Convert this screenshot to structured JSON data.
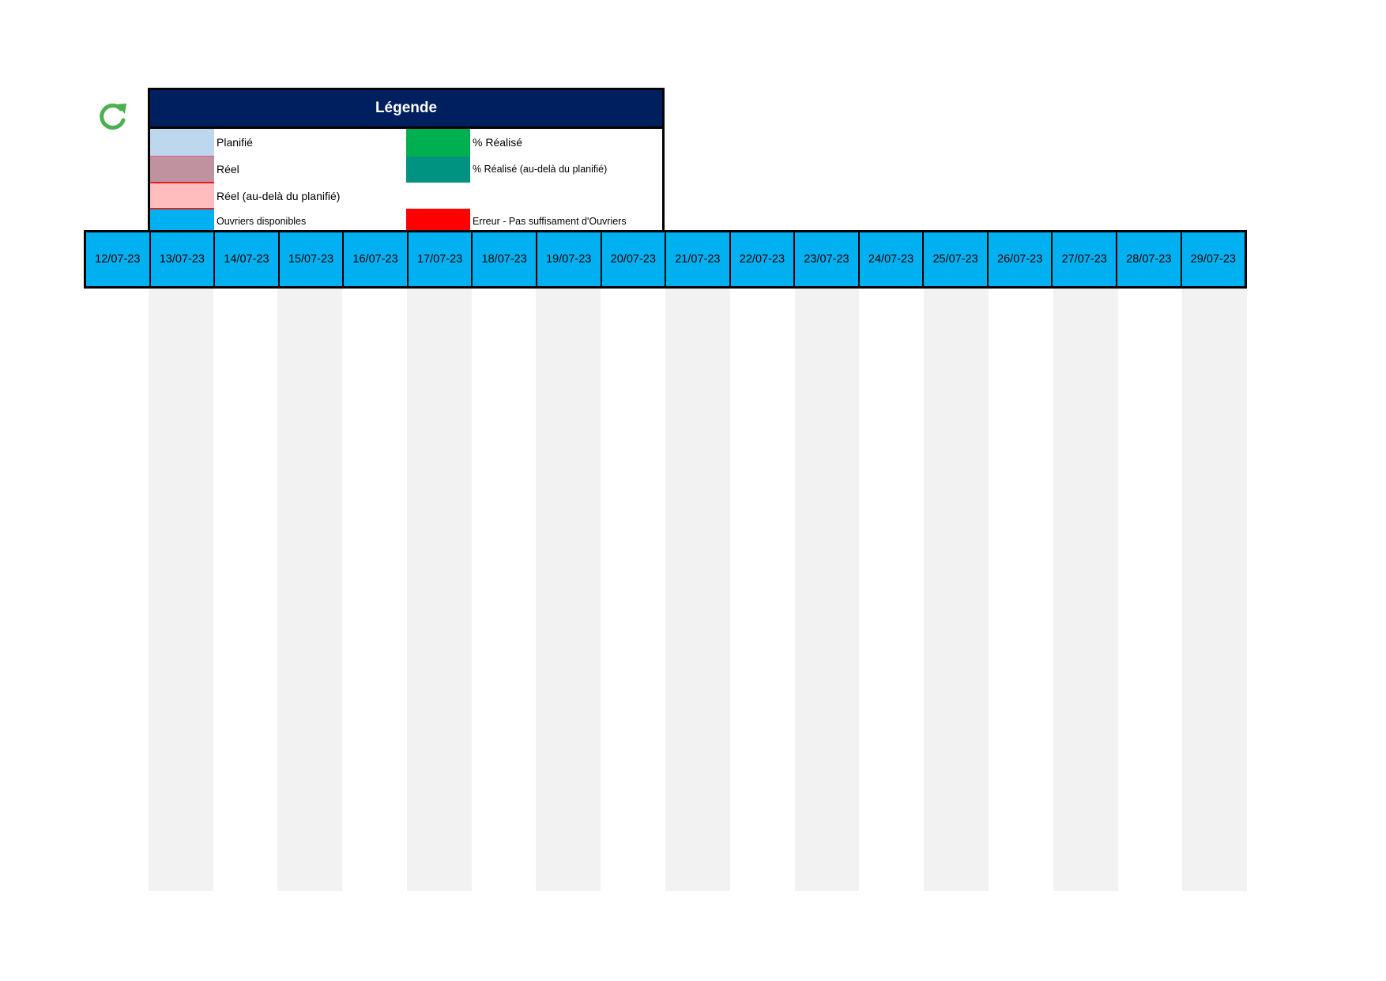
{
  "refresh_icon": "refresh-icon",
  "legend": {
    "title": "Légende",
    "items": [
      {
        "label": "Planifié",
        "color": "#bdd7ee"
      },
      {
        "label": "Réel",
        "color": "#c0929f"
      },
      {
        "label": "Réel (au-delà du planifié)",
        "color": "#ffbdbd"
      },
      {
        "label": "Ouvriers disponibles",
        "color": "#00b0f0"
      },
      {
        "label": "% Réalisé",
        "color": "#00b050"
      },
      {
        "label": "% Réalisé (au-delà du planifié)",
        "color": "#009381"
      },
      {
        "label": "Erreur - Pas suffisament d'Ouvriers",
        "color": "#ff0000"
      }
    ]
  },
  "dates": [
    "12/07-23",
    "13/07-23",
    "14/07-23",
    "15/07-23",
    "16/07-23",
    "17/07-23",
    "18/07-23",
    "19/07-23",
    "20/07-23",
    "21/07-23",
    "22/07-23",
    "23/07-23",
    "24/07-23",
    "25/07-23",
    "26/07-23",
    "27/07-23",
    "28/07-23",
    "29/07-23"
  ],
  "colors": {
    "header": "#001f5f",
    "date_row": "#00b0f0",
    "stripe": "#f2f2f2",
    "refresh": "#4caf50"
  }
}
